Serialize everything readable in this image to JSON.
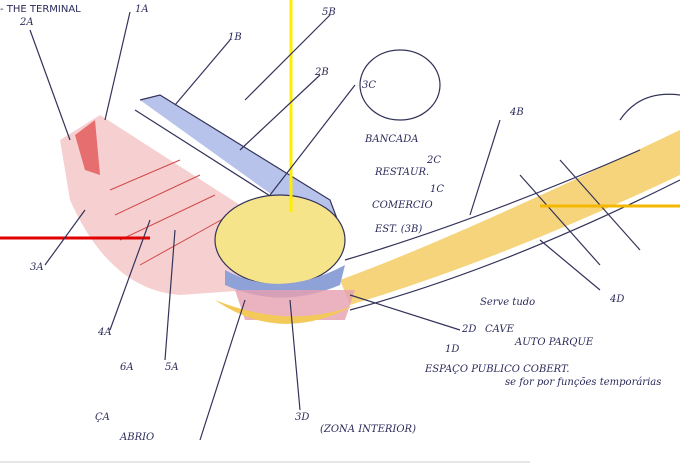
{
  "header": {
    "title": "- THE TERMINAL"
  },
  "labels": [
    "1A",
    "2A",
    "1B",
    "5B",
    "2B",
    "3C",
    "BANCADA",
    "RESTAUR.",
    "2C",
    "COMERCIO",
    "1C",
    "EST. (3B)",
    "4B",
    "3A",
    "4A",
    "6A",
    "5A",
    "4D",
    "Serve tudo",
    "2D",
    "CAVE",
    "AUTO PARQUE",
    "1D",
    "ESPAÇO PUBLICO COBERT.",
    "se for por funções temporárias",
    "3D",
    "(ZONA INTERIOR)",
    "ÇA",
    "ABRIO"
  ]
}
